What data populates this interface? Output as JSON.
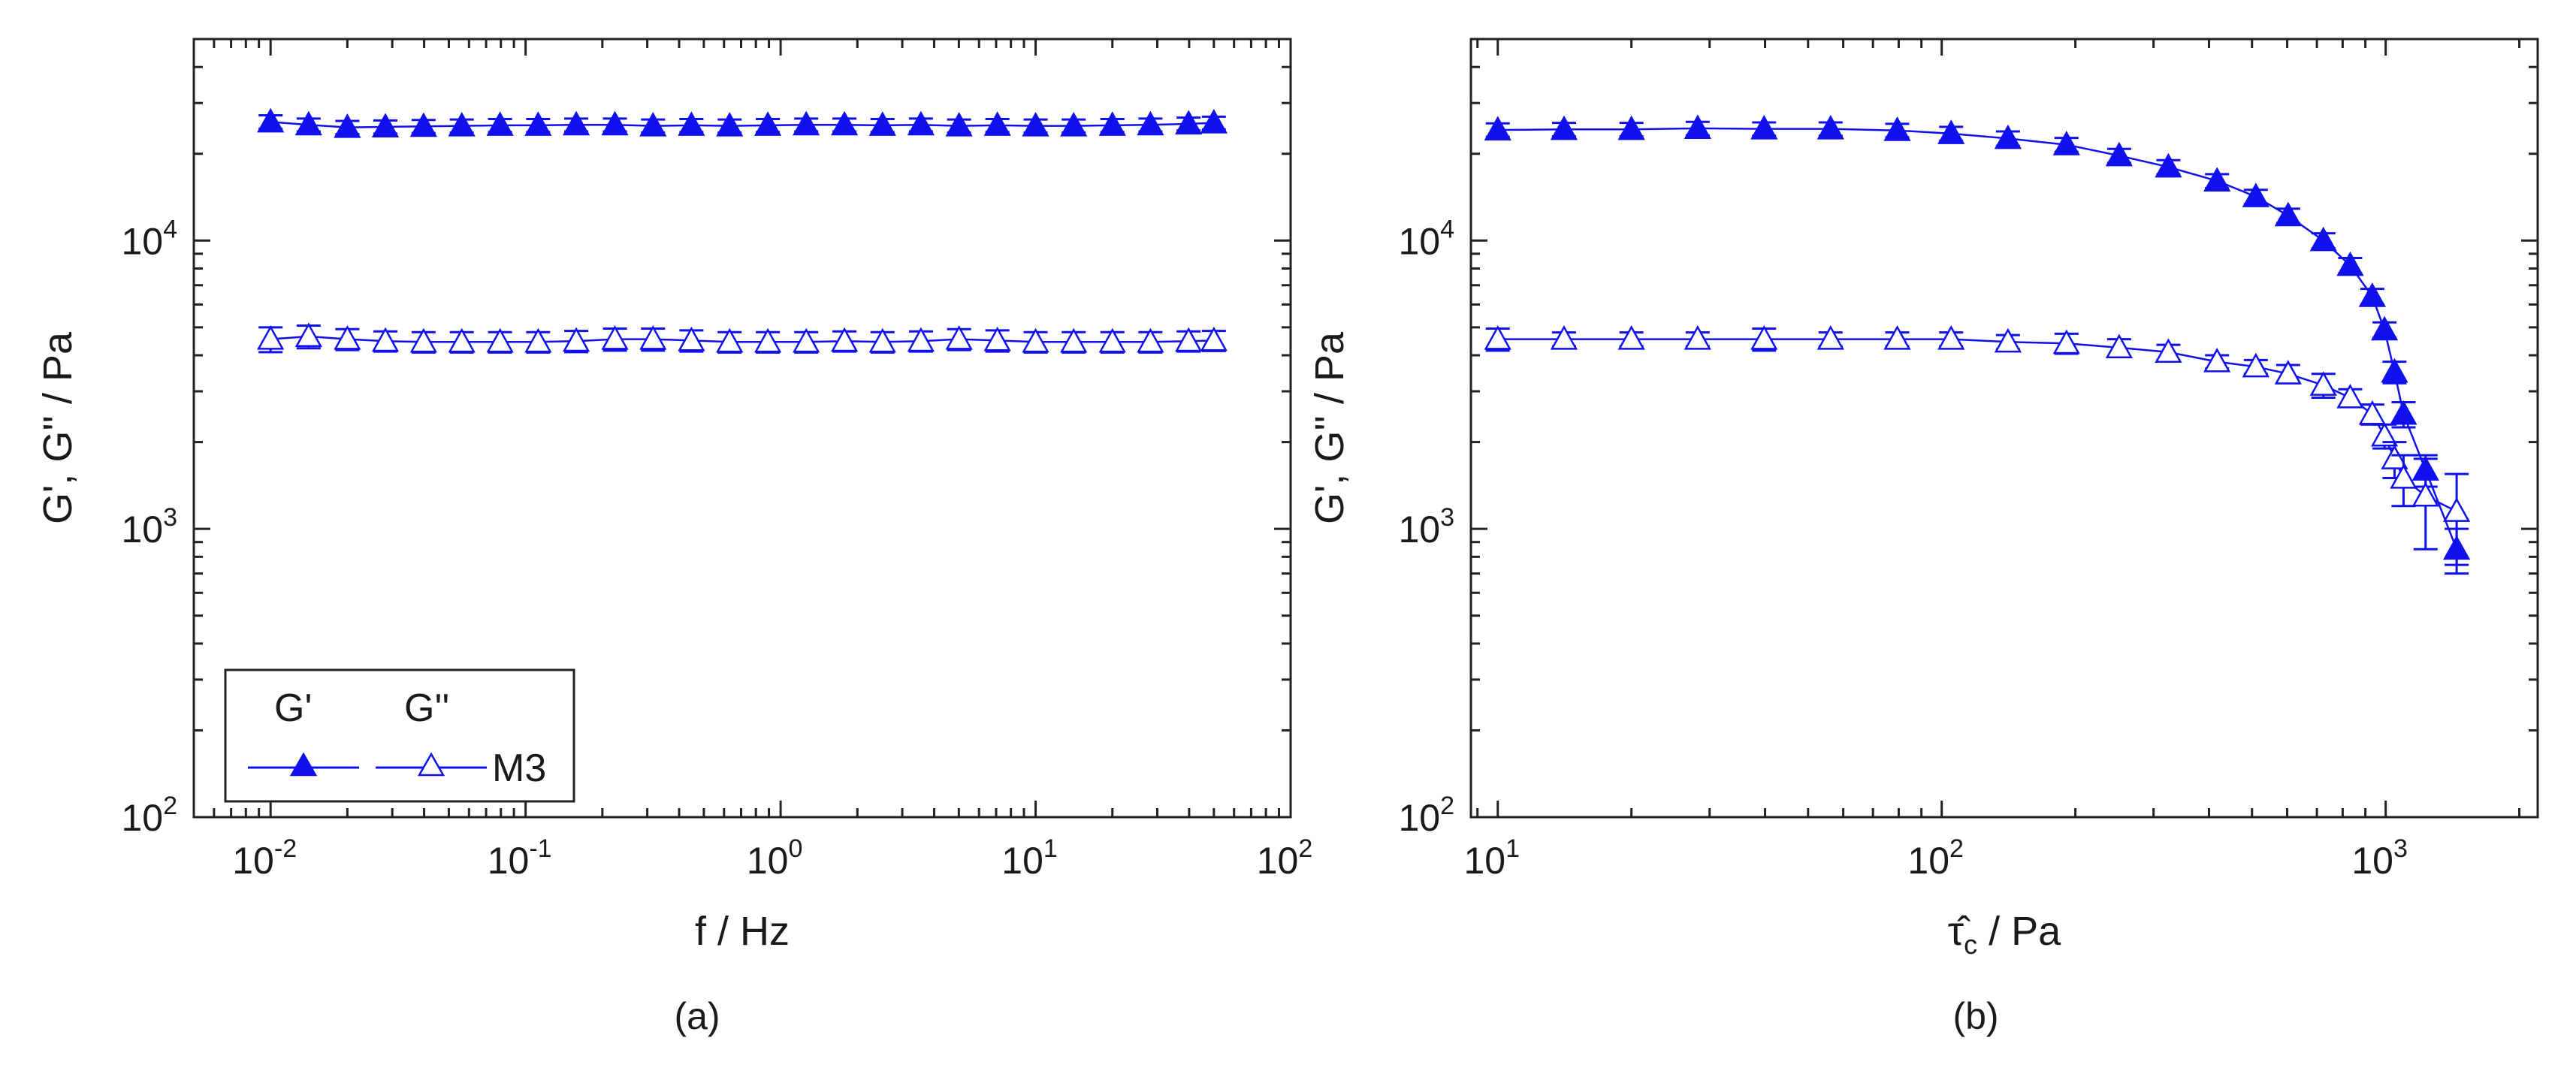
{
  "colors": {
    "series": "#1010ee",
    "axis": "#222222",
    "text": "#1a1a1a"
  },
  "panels": [
    {
      "caption": "(a)"
    },
    {
      "caption": "(b)"
    }
  ],
  "legend": {
    "col_gp": "G'",
    "col_gpp": "G''",
    "sample": "M3"
  },
  "chart_data": [
    {
      "type": "scatter",
      "xscale": "log",
      "yscale": "log",
      "xlim": [
        0.005,
        100
      ],
      "ylim": [
        100,
        50000
      ],
      "xlabel": "f / Hz",
      "ylabel": "G', G'' / Pa",
      "xticks": [
        {
          "value": 0.01,
          "base": "10",
          "exp": "-2"
        },
        {
          "value": 0.1,
          "base": "10",
          "exp": "-1"
        },
        {
          "value": 1,
          "base": "10",
          "exp": "0"
        },
        {
          "value": 10,
          "base": "10",
          "exp": "1"
        },
        {
          "value": 100,
          "base": "10",
          "exp": "2"
        }
      ],
      "yticks": [
        {
          "value": 100,
          "base": "10",
          "exp": "2"
        },
        {
          "value": 1000,
          "base": "10",
          "exp": "3"
        },
        {
          "value": 10000,
          "base": "10",
          "exp": "4"
        }
      ],
      "legend_position": "bottom-left",
      "series": [
        {
          "marker": "filled-triangle",
          "x": [
            0.01,
            0.0141,
            0.02,
            0.0282,
            0.0398,
            0.0562,
            0.0794,
            0.112,
            0.158,
            0.224,
            0.316,
            0.447,
            0.631,
            0.891,
            1.26,
            1.78,
            2.51,
            3.55,
            5.01,
            7.08,
            10,
            14.1,
            20,
            28.2,
            39.8,
            50
          ],
          "y": [
            25800,
            25200,
            24700,
            24800,
            24900,
            25000,
            25100,
            25100,
            25200,
            25200,
            25000,
            25100,
            25000,
            25100,
            25200,
            25200,
            25100,
            25200,
            25000,
            25100,
            25000,
            25000,
            25100,
            25200,
            25400,
            25600
          ],
          "yerr": [
            1400,
            1300,
            1300,
            1300,
            1300,
            1300,
            1300,
            1300,
            1300,
            1300,
            1300,
            1300,
            1300,
            1300,
            1300,
            1300,
            1300,
            1300,
            1300,
            1300,
            1300,
            1300,
            1300,
            1300,
            1300,
            1300
          ]
        },
        {
          "marker": "open-triangle",
          "x": [
            0.01,
            0.0141,
            0.02,
            0.0282,
            0.0398,
            0.0562,
            0.0794,
            0.112,
            0.158,
            0.224,
            0.316,
            0.447,
            0.631,
            0.891,
            1.26,
            1.78,
            2.51,
            3.55,
            5.01,
            7.08,
            10,
            14.1,
            20,
            28.2,
            39.8,
            50
          ],
          "y": [
            4550,
            4650,
            4550,
            4480,
            4450,
            4450,
            4450,
            4450,
            4480,
            4550,
            4550,
            4500,
            4450,
            4450,
            4450,
            4480,
            4450,
            4480,
            4550,
            4500,
            4450,
            4450,
            4450,
            4450,
            4480,
            4500
          ],
          "yerr": [
            450,
            420,
            380,
            360,
            360,
            360,
            360,
            360,
            380,
            400,
            400,
            380,
            360,
            360,
            360,
            360,
            360,
            360,
            380,
            380,
            360,
            360,
            360,
            360,
            360,
            360
          ]
        }
      ]
    },
    {
      "type": "scatter",
      "xscale": "log",
      "yscale": "log",
      "xlim": [
        8.7,
        2200
      ],
      "ylim": [
        100,
        50000
      ],
      "xlabel": "τ̂c / Pa",
      "xlabel_symbol": "τ̂",
      "xlabel_sub": "c",
      "xlabel_unit": " / Pa",
      "ylabel": "G', G'' / Pa",
      "xticks": [
        {
          "value": 10,
          "base": "10",
          "exp": "1"
        },
        {
          "value": 100,
          "base": "10",
          "exp": "2"
        },
        {
          "value": 1000,
          "base": "10",
          "exp": "3"
        }
      ],
      "yticks": [
        {
          "value": 100,
          "base": "10",
          "exp": "2"
        },
        {
          "value": 1000,
          "base": "10",
          "exp": "3"
        },
        {
          "value": 10000,
          "base": "10",
          "exp": "4"
        }
      ],
      "series": [
        {
          "marker": "filled-triangle",
          "x": [
            10,
            14.1,
            20,
            28.2,
            39.8,
            56.2,
            79.4,
            105,
            141,
            191,
            251,
            324,
            417,
            510,
            603,
            724,
            832,
            933,
            994,
            1047,
            1097,
            1230,
            1445
          ],
          "y": [
            24200,
            24300,
            24300,
            24500,
            24400,
            24400,
            24100,
            23500,
            22600,
            21500,
            19700,
            18000,
            16100,
            14200,
            12200,
            10000,
            8200,
            6400,
            4900,
            3500,
            2500,
            1600,
            850
          ],
          "yerr": [
            1300,
            1300,
            1300,
            1300,
            1300,
            1300,
            1300,
            1300,
            1300,
            1200,
            1100,
            1000,
            900,
            800,
            700,
            600,
            500,
            400,
            300,
            300,
            250,
            200,
            150
          ]
        },
        {
          "marker": "open-triangle",
          "x": [
            10,
            14.1,
            20,
            28.2,
            39.8,
            56.2,
            79.4,
            105,
            141,
            191,
            251,
            324,
            417,
            510,
            603,
            724,
            832,
            933,
            994,
            1047,
            1097,
            1230,
            1445
          ],
          "y": [
            4550,
            4550,
            4550,
            4550,
            4550,
            4550,
            4550,
            4550,
            4450,
            4400,
            4250,
            4100,
            3800,
            3650,
            3450,
            3150,
            2850,
            2500,
            2100,
            1750,
            1500,
            1300,
            1150
          ],
          "yerr": [
            400,
            250,
            250,
            250,
            400,
            250,
            250,
            250,
            250,
            350,
            300,
            250,
            200,
            200,
            250,
            300,
            200,
            200,
            200,
            250,
            300,
            450,
            400
          ]
        }
      ]
    }
  ]
}
